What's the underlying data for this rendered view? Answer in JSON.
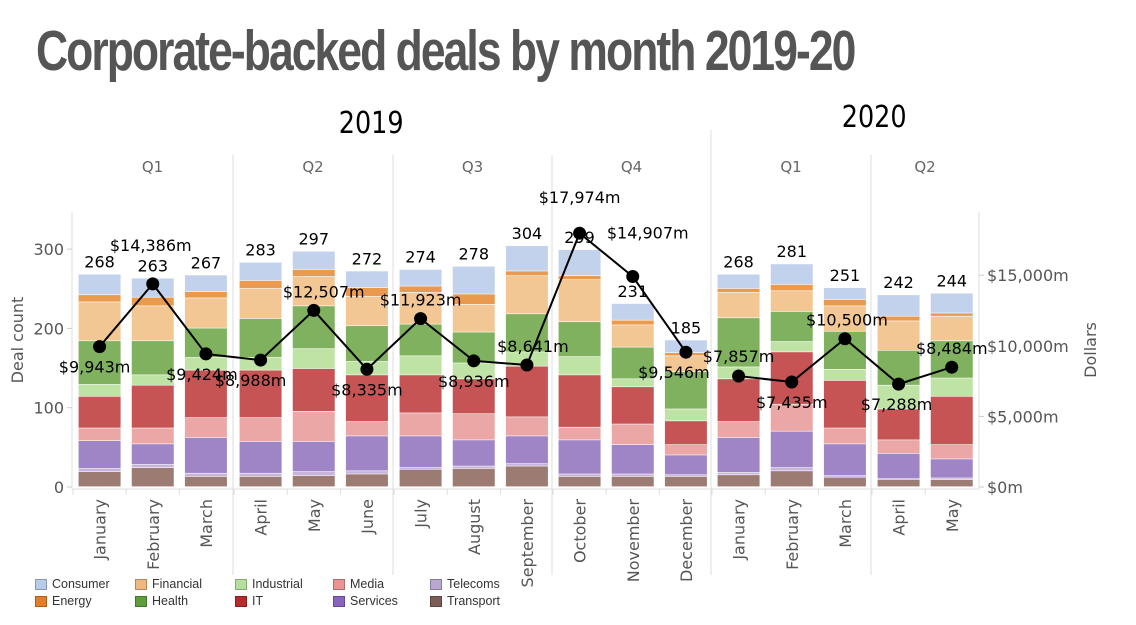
{
  "page": {
    "title": "Corporate-backed deals by month 2019-20"
  },
  "chart_data": {
    "type": "bar",
    "subtype": "stacked-bar-with-line-overlay",
    "title": "Corporate-backed deals by month 2019-20",
    "years": [
      {
        "label": "2019",
        "quarters": [
          "Q1",
          "Q2",
          "Q3",
          "Q4"
        ]
      },
      {
        "label": "2020",
        "quarters": [
          "Q1",
          "Q2"
        ]
      }
    ],
    "quarters": [
      {
        "year": "2019",
        "label": "Q1",
        "months": [
          "January",
          "February",
          "March"
        ]
      },
      {
        "year": "2019",
        "label": "Q2",
        "months": [
          "April",
          "May",
          "June"
        ]
      },
      {
        "year": "2019",
        "label": "Q3",
        "months": [
          "July",
          "August",
          "September"
        ]
      },
      {
        "year": "2019",
        "label": "Q4",
        "months": [
          "October",
          "November",
          "December"
        ]
      },
      {
        "year": "2020",
        "label": "Q1",
        "months": [
          "January",
          "February",
          "March"
        ]
      },
      {
        "year": "2020",
        "label": "Q2",
        "months": [
          "April",
          "May"
        ]
      }
    ],
    "categories": [
      "January",
      "February",
      "March",
      "April",
      "May",
      "June",
      "July",
      "August",
      "September",
      "October",
      "November",
      "December",
      "January",
      "February",
      "March",
      "April",
      "May"
    ],
    "ylabel": "Deal count",
    "ylim": [
      0,
      330
    ],
    "yticks": [
      "0",
      "100",
      "200",
      "300"
    ],
    "ytick_values": [
      0,
      100,
      200,
      300
    ],
    "y2label": "Dollars",
    "y2lim": [
      0,
      18600
    ],
    "y2ticks": [
      "$0m",
      "$5,000m",
      "$10,000m",
      "$15,000m"
    ],
    "y2tick_values": [
      0,
      5000,
      10000,
      15000
    ],
    "grid": false,
    "legend_position": "bottom-left",
    "totals": [
      268,
      263,
      267,
      283,
      297,
      272,
      274,
      278,
      304,
      299,
      231,
      185,
      268,
      281,
      251,
      242,
      244
    ],
    "total_labels": [
      "268",
      "263",
      "267",
      "283",
      "297",
      "272",
      "274",
      "278",
      "304",
      "299",
      "231",
      "185",
      "268",
      "281",
      "251",
      "242",
      "244"
    ],
    "series": [
      {
        "name": "Transport",
        "color": "#9c7b73",
        "legend_color": "#7d5c55",
        "values": [
          19,
          24,
          13,
          13,
          14,
          16,
          22,
          23,
          26,
          13,
          13,
          13,
          15,
          20,
          12,
          9,
          9
        ]
      },
      {
        "name": "Telecoms",
        "color": "#c6b4dc",
        "legend_color": "#b9a6d1",
        "values": [
          4,
          4,
          4,
          4,
          5,
          4,
          2,
          3,
          3,
          3,
          3,
          2,
          3,
          4,
          2,
          1,
          2
        ]
      },
      {
        "name": "Services",
        "color": "#9f84c6",
        "legend_color": "#8a63bd",
        "values": [
          35,
          26,
          45,
          40,
          38,
          44,
          40,
          33,
          35,
          43,
          37,
          25,
          44,
          46,
          40,
          32,
          24
        ]
      },
      {
        "name": "Media",
        "color": "#eaa7a6",
        "legend_color": "#e99393",
        "values": [
          16,
          20,
          25,
          30,
          38,
          18,
          29,
          33,
          24,
          16,
          26,
          13,
          20,
          34,
          20,
          17,
          18
        ]
      },
      {
        "name": "IT",
        "color": "#c65454",
        "legend_color": "#b52a2a",
        "values": [
          40,
          54,
          60,
          60,
          54,
          59,
          48,
          44,
          64,
          66,
          47,
          30,
          54,
          66,
          60,
          39,
          61
        ]
      },
      {
        "name": "Industrial",
        "color": "#bfe3a4",
        "legend_color": "#b5df9c",
        "values": [
          15,
          13,
          16,
          16,
          25,
          17,
          24,
          20,
          18,
          23,
          10,
          15,
          15,
          13,
          14,
          30,
          23
        ]
      },
      {
        "name": "Health",
        "color": "#7fb15f",
        "legend_color": "#5f9c3c",
        "values": [
          55,
          43,
          37,
          49,
          54,
          45,
          40,
          39,
          48,
          44,
          40,
          47,
          62,
          38,
          48,
          44,
          47
        ]
      },
      {
        "name": "Financial",
        "color": "#f3c794",
        "legend_color": "#f2b77c",
        "values": [
          49,
          44,
          38,
          38,
          37,
          37,
          40,
          35,
          48,
          53,
          28,
          20,
          32,
          26,
          32,
          37,
          31
        ]
      },
      {
        "name": "Energy",
        "color": "#ea9a4e",
        "legend_color": "#e57d28",
        "values": [
          9,
          11,
          8,
          10,
          9,
          11,
          8,
          13,
          6,
          5,
          6,
          4,
          5,
          8,
          8,
          6,
          4
        ]
      },
      {
        "name": "Consumer",
        "color": "#c2d2ec",
        "legend_color": "#b7cbea",
        "values": [
          26,
          24,
          21,
          23,
          23,
          21,
          21,
          35,
          32,
          33,
          21,
          16,
          18,
          26,
          15,
          27,
          25
        ]
      }
    ],
    "line_series": {
      "name": "Dollars",
      "color": "#000000",
      "values": [
        9943,
        14386,
        9424,
        8988,
        12507,
        8335,
        11923,
        8936,
        8641,
        17974,
        14907,
        9546,
        7857,
        7435,
        10500,
        7288,
        8484
      ],
      "labels": [
        "$9,943m",
        "$14,386m",
        "$9,424m",
        "$8,988m",
        "$12,507m",
        "$8,335m",
        "$11,923m",
        "$8,936m",
        "$8,641m",
        "$17,974m",
        "$14,907m",
        "$9,546m",
        "$7,857m",
        "$7,435m",
        "$10,500m",
        "$7,288m",
        "$8,484m"
      ]
    },
    "legend": [
      {
        "name": "Consumer",
        "color": "#b7cbea"
      },
      {
        "name": "Energy",
        "color": "#e57d28"
      },
      {
        "name": "Financial",
        "color": "#f2b77c"
      },
      {
        "name": "Health",
        "color": "#5f9c3c"
      },
      {
        "name": "Industrial",
        "color": "#b5df9c"
      },
      {
        "name": "IT",
        "color": "#b52a2a"
      },
      {
        "name": "Media",
        "color": "#e99393"
      },
      {
        "name": "Services",
        "color": "#8a63bd"
      },
      {
        "name": "Telecoms",
        "color": "#b9a6d1"
      },
      {
        "name": "Transport",
        "color": "#7d5c55"
      }
    ]
  }
}
